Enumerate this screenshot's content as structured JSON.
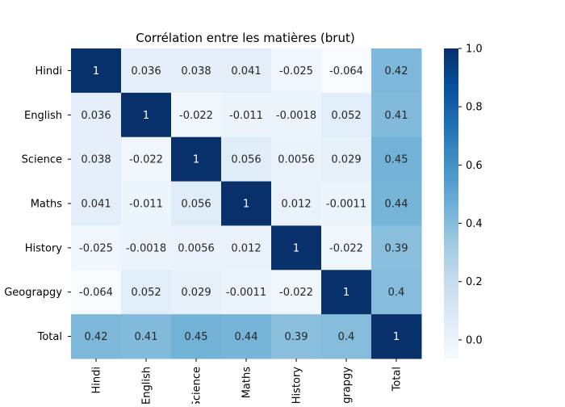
{
  "chart_data": {
    "type": "heatmap",
    "title": "Corrélation entre les matières (brut)",
    "xlabel": "",
    "ylabel": "",
    "row_labels": [
      "Hindi",
      "English",
      "Science",
      "Maths",
      "History",
      "Geograpgy",
      "Total"
    ],
    "col_labels": [
      "Hindi",
      "English",
      "Science",
      "Maths",
      "History",
      "Geograpgy",
      "Total"
    ],
    "values": [
      [
        1,
        0.036,
        0.038,
        0.041,
        -0.025,
        -0.064,
        0.42
      ],
      [
        0.036,
        1,
        -0.022,
        -0.011,
        -0.0018,
        0.052,
        0.41
      ],
      [
        0.038,
        -0.022,
        1,
        0.056,
        0.0056,
        0.029,
        0.45
      ],
      [
        0.041,
        -0.011,
        0.056,
        1,
        0.012,
        -0.0011,
        0.44
      ],
      [
        -0.025,
        -0.0018,
        0.0056,
        0.012,
        1,
        -0.022,
        0.39
      ],
      [
        -0.064,
        0.052,
        0.029,
        -0.0011,
        -0.022,
        1,
        0.4
      ],
      [
        0.42,
        0.41,
        0.45,
        0.44,
        0.39,
        0.4,
        1
      ]
    ],
    "cell_labels": [
      [
        "1",
        "0.036",
        "0.038",
        "0.041",
        "-0.025",
        "-0.064",
        "0.42"
      ],
      [
        "0.036",
        "1",
        "-0.022",
        "-0.011",
        "-0.0018",
        "0.052",
        "0.41"
      ],
      [
        "0.038",
        "-0.022",
        "1",
        "0.056",
        "0.0056",
        "0.029",
        "0.45"
      ],
      [
        "0.041",
        "-0.011",
        "0.056",
        "1",
        "0.012",
        "-0.0011",
        "0.44"
      ],
      [
        "-0.025",
        "-0.0018",
        "0.0056",
        "0.012",
        "1",
        "-0.022",
        "0.39"
      ],
      [
        "-0.064",
        "0.052",
        "0.029",
        "-0.0011",
        "-0.022",
        "1",
        "0.4"
      ],
      [
        "0.42",
        "0.41",
        "0.45",
        "0.44",
        "0.39",
        "0.4",
        "1"
      ]
    ],
    "colorbar": {
      "colormap": "Blues",
      "vmin": -0.064,
      "vmax": 1.0,
      "ticks": [
        0.0,
        0.2,
        0.4,
        0.6,
        0.8,
        1.0
      ],
      "tick_labels": [
        "0.0",
        "0.2",
        "0.4",
        "0.6",
        "0.8",
        "1.0"
      ]
    }
  }
}
